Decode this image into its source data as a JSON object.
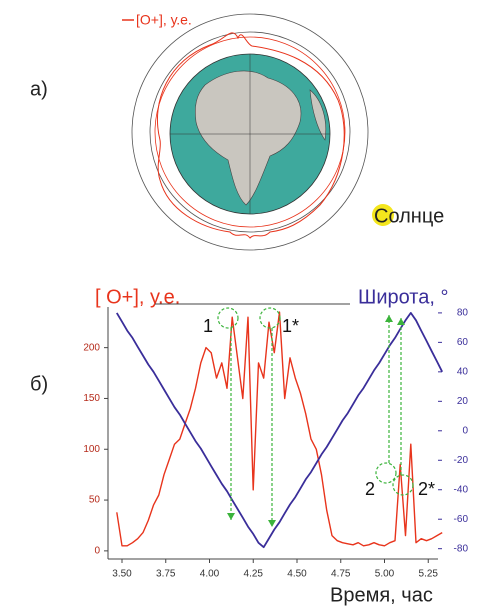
{
  "panel_a": {
    "label": "а)",
    "legend": "[O+], у.е.",
    "sun": "Солнце"
  },
  "panel_b_label": "б)",
  "chart_data": {
    "type": "line",
    "x_label": "Время, час",
    "x": [
      3.47,
      3.5,
      3.53,
      3.56,
      3.59,
      3.62,
      3.65,
      3.68,
      3.71,
      3.74,
      3.77,
      3.8,
      3.83,
      3.86,
      3.89,
      3.92,
      3.95,
      3.98,
      4.01,
      4.04,
      4.07,
      4.1,
      4.13,
      4.16,
      4.19,
      4.22,
      4.25,
      4.28,
      4.31,
      4.34,
      4.37,
      4.4,
      4.43,
      4.46,
      4.49,
      4.52,
      4.55,
      4.58,
      4.61,
      4.64,
      4.67,
      4.7,
      4.73,
      4.76,
      4.79,
      4.82,
      4.85,
      4.88,
      4.91,
      4.94,
      4.97,
      5.0,
      5.03,
      5.06,
      5.09,
      5.12,
      5.15,
      5.18,
      5.21,
      5.24,
      5.27,
      5.3,
      5.33
    ],
    "series": [
      {
        "name": "[ O+], у.е.",
        "color": "#e8341c",
        "values": [
          38,
          5,
          5,
          8,
          12,
          18,
          30,
          45,
          55,
          75,
          90,
          105,
          110,
          125,
          140,
          160,
          185,
          200,
          195,
          170,
          185,
          160,
          230,
          190,
          150,
          230,
          60,
          185,
          170,
          225,
          195,
          235,
          150,
          190,
          170,
          155,
          135,
          110,
          100,
          75,
          40,
          15,
          10,
          8,
          7,
          6,
          8,
          5,
          6,
          8,
          6,
          5,
          8,
          10,
          85,
          15,
          105,
          8,
          12,
          10,
          12,
          15,
          18
        ]
      },
      {
        "name": "Широта, °",
        "color": "#3a2e9a",
        "axis": "y2",
        "values": [
          80,
          74,
          68,
          63,
          57,
          51,
          45,
          40,
          34,
          28,
          22,
          16,
          11,
          5,
          -1,
          -7,
          -12,
          -18,
          -24,
          -30,
          -36,
          -41,
          -47,
          -53,
          -59,
          -65,
          -70,
          -76,
          -79,
          -73,
          -67,
          -62,
          -56,
          -50,
          -45,
          -39,
          -33,
          -28,
          -22,
          -16,
          -11,
          -5,
          1,
          7,
          12,
          18,
          24,
          29,
          35,
          41,
          46,
          52,
          58,
          63,
          69,
          75,
          80,
          75,
          68,
          61,
          54,
          47,
          40
        ]
      }
    ],
    "xlim": [
      3.42,
      5.36
    ],
    "xticks": [
      {
        "value": 3.5,
        "label": "3.50"
      },
      {
        "value": 3.75,
        "label": "3.75"
      },
      {
        "value": 4.0,
        "label": "4.00"
      },
      {
        "value": 4.25,
        "label": "4.25"
      },
      {
        "value": 4.5,
        "label": "4.50"
      },
      {
        "value": 4.75,
        "label": "4.75"
      },
      {
        "value": 5.0,
        "label": "5.00"
      },
      {
        "value": 5.25,
        "label": "5.25"
      }
    ],
    "ylim": [
      -8,
      240
    ],
    "yticks": [
      0,
      50,
      100,
      150,
      200
    ],
    "y2lim": [
      -87,
      84
    ],
    "y2ticks": [
      -80,
      -60,
      -40,
      -20,
      0,
      20,
      40,
      60,
      80
    ],
    "annotations": [
      "1",
      "1*",
      "2",
      "2*"
    ]
  }
}
